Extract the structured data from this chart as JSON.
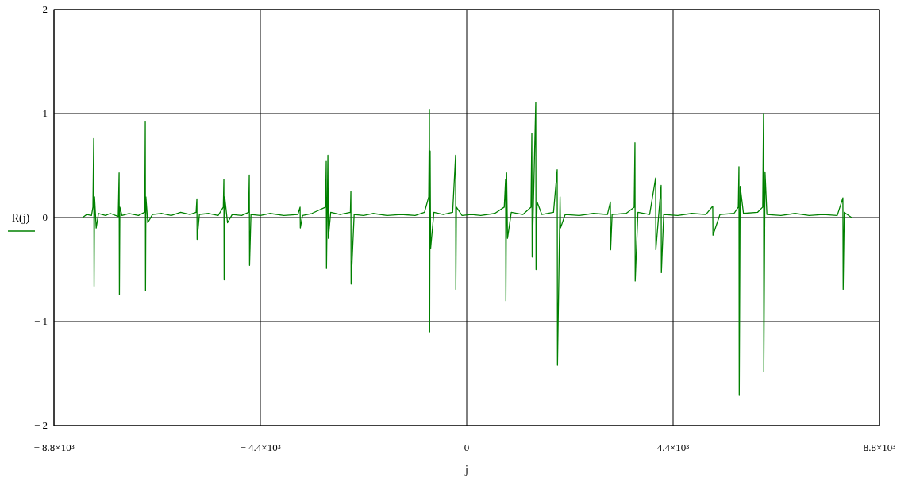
{
  "chart_data": {
    "type": "line",
    "xlabel": "j",
    "legend": "left",
    "grid": true,
    "line_style": "solid",
    "xlim": [
      -8800,
      8800
    ],
    "ylim": [
      -2,
      2
    ],
    "xticks": [
      {
        "value": -8800,
        "label": "− 8.8×10³"
      },
      {
        "value": -4400,
        "label": "− 4.4×10³"
      },
      0,
      {
        "value": 4400,
        "label": "4.4×10³"
      },
      {
        "value": 8800,
        "label": "8.8×10³"
      }
    ],
    "yticks": [
      {
        "value": -2,
        "label": "− 2"
      },
      {
        "value": -1,
        "label": "− 1"
      },
      0,
      1,
      2
    ],
    "series": [
      {
        "name": "R(j)",
        "color": "#008000",
        "x": [
          -8190,
          -8100,
          -8000,
          -7970,
          -7953,
          -7945,
          -7935,
          -7900,
          -7850,
          -7700,
          -7600,
          -7430,
          -7411,
          -7405,
          -7395,
          -7350,
          -7200,
          -7000,
          -6870,
          -6860,
          -6853,
          -6848,
          -6840,
          -6800,
          -6700,
          -6500,
          -6300,
          -6100,
          -5900,
          -5770,
          -5753,
          -5748,
          -5700,
          -5500,
          -5300,
          -5190,
          -5178,
          -5172,
          -5160,
          -5100,
          -5000,
          -4800,
          -4650,
          -4636,
          -4630,
          -4600,
          -4400,
          -4200,
          -3900,
          -3600,
          -3553,
          -3548,
          -3500,
          -3300,
          -3010,
          -2995,
          -2990,
          -2960,
          -2950,
          -2900,
          -2700,
          -2480,
          -2470,
          -2465,
          -2400,
          -2200,
          -2000,
          -1700,
          -1400,
          -1100,
          -900,
          -810,
          -795,
          -790,
          -780,
          -770,
          -700,
          -500,
          -300,
          -237,
          -232,
          -220,
          -100,
          100,
          300,
          600,
          800,
          829,
          835,
          850,
          870,
          950,
          1200,
          1370,
          1388,
          1395,
          1472,
          1478,
          1500,
          1600,
          1850,
          1929,
          1935,
          1990,
          2000,
          2100,
          2400,
          2700,
          3000,
          3063,
          3068,
          3100,
          3400,
          3570,
          3587,
          3592,
          3650,
          3900,
          4027,
          4032,
          4145,
          4150,
          4200,
          4500,
          4800,
          5100,
          5245,
          5250,
          5400,
          5700,
          5790,
          5804,
          5810,
          5830,
          5900,
          6200,
          6310,
          6328,
          6334,
          6360,
          6400,
          6700,
          7000,
          7300,
          7600,
          7900,
          8020,
          8026,
          8050,
          8206
        ],
        "values": [
          0,
          0.03,
          0.02,
          0.1,
          0.76,
          -0.66,
          0.2,
          -0.1,
          0.04,
          0.02,
          0.04,
          0.01,
          0.43,
          -0.74,
          0.1,
          0.02,
          0.04,
          0.02,
          0.05,
          0.35,
          0.92,
          -0.7,
          0.2,
          -0.05,
          0.03,
          0.04,
          0.02,
          0.05,
          0.03,
          0.05,
          0.18,
          -0.21,
          0.03,
          0.04,
          0.02,
          0.1,
          0.37,
          -0.6,
          0.2,
          -0.05,
          0.03,
          0.02,
          0.05,
          0.41,
          -0.46,
          0.03,
          0.02,
          0.04,
          0.02,
          0.03,
          0.1,
          -0.1,
          0.02,
          0.04,
          0.1,
          0.54,
          -0.49,
          0.6,
          -0.2,
          0.05,
          0.03,
          0.05,
          0.25,
          -0.64,
          0.03,
          0.02,
          0.04,
          0.02,
          0.03,
          0.02,
          0.05,
          0.2,
          1.04,
          -1.1,
          0.64,
          -0.3,
          0.05,
          0.03,
          0.05,
          0.6,
          -0.69,
          0.1,
          0.02,
          0.03,
          0.02,
          0.04,
          0.1,
          0.37,
          -0.8,
          0.43,
          -0.2,
          0.05,
          0.03,
          0.1,
          0.81,
          -0.38,
          1.11,
          -0.5,
          0.15,
          0.03,
          0.05,
          0.46,
          -1.42,
          0.2,
          -0.1,
          0.03,
          0.02,
          0.04,
          0.03,
          0.15,
          -0.31,
          0.03,
          0.04,
          0.1,
          0.72,
          -0.61,
          0.05,
          0.03,
          0.38,
          -0.31,
          0.31,
          -0.53,
          0.03,
          0.02,
          0.04,
          0.03,
          0.11,
          -0.17,
          0.03,
          0.04,
          0.1,
          0.49,
          -1.71,
          0.3,
          0.04,
          0.05,
          0.1,
          1.0,
          -1.48,
          0.44,
          0.03,
          0.02,
          0.04,
          0.02,
          0.03,
          0.02,
          0.19,
          -0.69,
          0.05,
          0
        ]
      }
    ]
  }
}
